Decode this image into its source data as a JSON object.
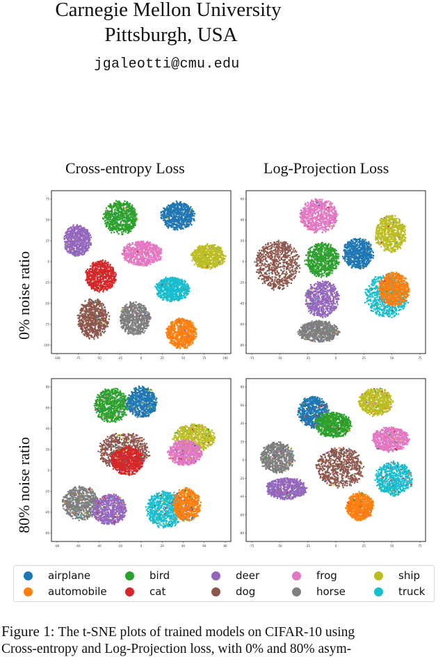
{
  "header": {
    "affiliation": "Carnegie Mellon University",
    "location": "Pittsburgh, USA",
    "email": "jgaleotti@cmu.edu"
  },
  "figure": {
    "column_titles": [
      "Cross-entropy Loss",
      "Log-Projection Loss"
    ],
    "row_labels": [
      "0% noise ratio",
      "80% noise ratio"
    ],
    "caption_number": "Figure 1:",
    "caption_line1": "The t-SNE plots of trained models on CIFAR-10 using",
    "caption_line2": "Cross-entropy and Log-Projection loss, with 0% and 80% asym-"
  },
  "legend": {
    "items": [
      {
        "label": "airplane",
        "color": "#1f77b4"
      },
      {
        "label": "automobile",
        "color": "#ff7f0e"
      },
      {
        "label": "bird",
        "color": "#2ca02c"
      },
      {
        "label": "cat",
        "color": "#d62728"
      },
      {
        "label": "deer",
        "color": "#9467bd"
      },
      {
        "label": "dog",
        "color": "#8c564b"
      },
      {
        "label": "frog",
        "color": "#e377c2"
      },
      {
        "label": "horse",
        "color": "#7f7f7f"
      },
      {
        "label": "ship",
        "color": "#bcbd22"
      },
      {
        "label": "truck",
        "color": "#17becf"
      }
    ]
  },
  "chart_data": [
    {
      "type": "scatter",
      "title": "Cross-entropy Loss, 0% noise ratio",
      "xlabel": "",
      "ylabel": "",
      "xticks": [
        "-100",
        "-75",
        "-50",
        "-25",
        "0",
        "25",
        "50",
        "75",
        "100"
      ],
      "yticks": [
        "75",
        "50",
        "25",
        "0",
        "-25",
        "-50",
        "-75",
        "-100"
      ],
      "clusters": [
        {
          "class": "airplane",
          "cx": 0.7,
          "cy": 0.15,
          "rx": 0.1,
          "ry": 0.09
        },
        {
          "class": "bird",
          "cx": 0.38,
          "cy": 0.16,
          "rx": 0.1,
          "ry": 0.11
        },
        {
          "class": "deer",
          "cx": 0.14,
          "cy": 0.3,
          "rx": 0.08,
          "ry": 0.1
        },
        {
          "class": "frog",
          "cx": 0.5,
          "cy": 0.38,
          "rx": 0.12,
          "ry": 0.08
        },
        {
          "class": "ship",
          "cx": 0.87,
          "cy": 0.4,
          "rx": 0.1,
          "ry": 0.08
        },
        {
          "class": "cat",
          "cx": 0.27,
          "cy": 0.52,
          "rx": 0.09,
          "ry": 0.1
        },
        {
          "class": "truck",
          "cx": 0.67,
          "cy": 0.6,
          "rx": 0.1,
          "ry": 0.08
        },
        {
          "class": "dog",
          "cx": 0.23,
          "cy": 0.78,
          "rx": 0.09,
          "ry": 0.13
        },
        {
          "class": "horse",
          "cx": 0.46,
          "cy": 0.78,
          "rx": 0.09,
          "ry": 0.11
        },
        {
          "class": "automobile",
          "cx": 0.72,
          "cy": 0.87,
          "rx": 0.09,
          "ry": 0.1
        }
      ]
    },
    {
      "type": "scatter",
      "title": "Log-Projection Loss, 0% noise ratio",
      "xlabel": "",
      "ylabel": "",
      "xticks": [
        "-75",
        "-50",
        "-25",
        "0",
        "25",
        "50",
        "75"
      ],
      "yticks": [
        "60",
        "40",
        "20",
        "0",
        "-20",
        "-40",
        "-60",
        "-80"
      ],
      "clusters": [
        {
          "class": "frog",
          "cx": 0.4,
          "cy": 0.15,
          "rx": 0.11,
          "ry": 0.11
        },
        {
          "class": "ship",
          "cx": 0.8,
          "cy": 0.26,
          "rx": 0.09,
          "ry": 0.12
        },
        {
          "class": "dog",
          "cx": 0.17,
          "cy": 0.45,
          "rx": 0.13,
          "ry": 0.16
        },
        {
          "class": "bird",
          "cx": 0.42,
          "cy": 0.42,
          "rx": 0.1,
          "ry": 0.11
        },
        {
          "class": "airplane",
          "cx": 0.62,
          "cy": 0.38,
          "rx": 0.09,
          "ry": 0.1
        },
        {
          "class": "deer",
          "cx": 0.42,
          "cy": 0.66,
          "rx": 0.1,
          "ry": 0.12
        },
        {
          "class": "truck",
          "cx": 0.78,
          "cy": 0.64,
          "rx": 0.13,
          "ry": 0.14
        },
        {
          "class": "automobile",
          "cx": 0.82,
          "cy": 0.6,
          "rx": 0.09,
          "ry": 0.11
        },
        {
          "class": "horse",
          "cx": 0.4,
          "cy": 0.86,
          "rx": 0.12,
          "ry": 0.07
        }
      ]
    },
    {
      "type": "scatter",
      "title": "Cross-entropy Loss, 80% noise ratio",
      "xlabel": "",
      "ylabel": "",
      "xticks": [
        "-80",
        "-60",
        "-40",
        "-20",
        "0",
        "20",
        "40",
        "60",
        "80"
      ],
      "yticks": [
        "80",
        "60",
        "40",
        "20",
        "0",
        "-20",
        "-40",
        "-60"
      ],
      "clusters": [
        {
          "class": "bird",
          "cx": 0.33,
          "cy": 0.16,
          "rx": 0.1,
          "ry": 0.11
        },
        {
          "class": "airplane",
          "cx": 0.5,
          "cy": 0.14,
          "rx": 0.09,
          "ry": 0.1
        },
        {
          "class": "ship",
          "cx": 0.79,
          "cy": 0.36,
          "rx": 0.12,
          "ry": 0.09
        },
        {
          "class": "frog",
          "cx": 0.74,
          "cy": 0.45,
          "rx": 0.1,
          "ry": 0.08
        },
        {
          "class": "dog",
          "cx": 0.4,
          "cy": 0.44,
          "rx": 0.15,
          "ry": 0.12
        },
        {
          "class": "cat",
          "cx": 0.42,
          "cy": 0.5,
          "rx": 0.1,
          "ry": 0.09
        },
        {
          "class": "horse",
          "cx": 0.16,
          "cy": 0.76,
          "rx": 0.11,
          "ry": 0.11
        },
        {
          "class": "deer",
          "cx": 0.32,
          "cy": 0.8,
          "rx": 0.1,
          "ry": 0.1
        },
        {
          "class": "truck",
          "cx": 0.63,
          "cy": 0.8,
          "rx": 0.11,
          "ry": 0.12
        },
        {
          "class": "automobile",
          "cx": 0.75,
          "cy": 0.77,
          "rx": 0.08,
          "ry": 0.11
        }
      ]
    },
    {
      "type": "scatter",
      "title": "Log-Projection Loss, 80% noise ratio",
      "xlabel": "",
      "ylabel": "",
      "xticks": [
        "-75",
        "-50",
        "-25",
        "0",
        "25",
        "50",
        "75"
      ],
      "yticks": [
        "80",
        "60",
        "40",
        "20",
        "0",
        "-20",
        "-40",
        "-60",
        "-80"
      ],
      "clusters": [
        {
          "class": "airplane",
          "cx": 0.37,
          "cy": 0.2,
          "rx": 0.09,
          "ry": 0.1
        },
        {
          "class": "bird",
          "cx": 0.48,
          "cy": 0.28,
          "rx": 0.11,
          "ry": 0.08
        },
        {
          "class": "ship",
          "cx": 0.72,
          "cy": 0.14,
          "rx": 0.1,
          "ry": 0.09
        },
        {
          "class": "frog",
          "cx": 0.8,
          "cy": 0.37,
          "rx": 0.11,
          "ry": 0.08
        },
        {
          "class": "horse",
          "cx": 0.17,
          "cy": 0.48,
          "rx": 0.1,
          "ry": 0.1
        },
        {
          "class": "dog",
          "cx": 0.52,
          "cy": 0.54,
          "rx": 0.14,
          "ry": 0.13
        },
        {
          "class": "deer",
          "cx": 0.22,
          "cy": 0.67,
          "rx": 0.12,
          "ry": 0.07
        },
        {
          "class": "truck",
          "cx": 0.82,
          "cy": 0.61,
          "rx": 0.11,
          "ry": 0.11
        },
        {
          "class": "automobile",
          "cx": 0.63,
          "cy": 0.78,
          "rx": 0.08,
          "ry": 0.09
        }
      ]
    }
  ]
}
